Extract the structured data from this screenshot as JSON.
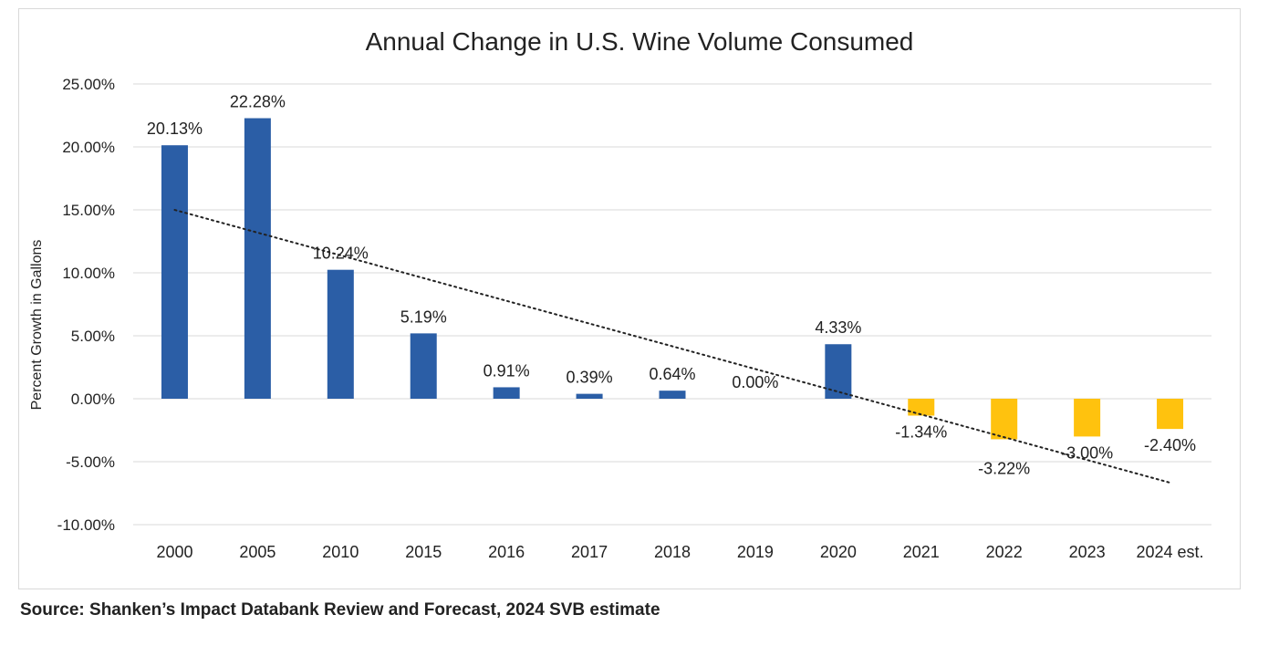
{
  "chart_data": {
    "type": "bar",
    "title": "Annual Change in U.S. Wine Volume Consumed",
    "ylabel": "Percent Growth in Gallons",
    "xlabel": "",
    "categories": [
      "2000",
      "2005",
      "2010",
      "2015",
      "2016",
      "2017",
      "2018",
      "2019",
      "2020",
      "2021",
      "2022",
      "2023",
      "2024 est."
    ],
    "values": [
      20.13,
      22.28,
      10.24,
      5.19,
      0.91,
      0.39,
      0.64,
      0.0,
      4.33,
      -1.34,
      -3.22,
      -3.0,
      -2.4
    ],
    "data_labels": [
      "20.13%",
      "22.28%",
      "10.24%",
      "5.19%",
      "0.91%",
      "0.39%",
      "0.64%",
      "0.00%",
      "4.33%",
      "-1.34%",
      "-3.22%",
      "-3.00%",
      "-2.40%"
    ],
    "ylim": [
      -10,
      25
    ],
    "yticks": [
      25,
      20,
      15,
      10,
      5,
      0,
      -5,
      -10
    ],
    "ytick_labels": [
      "25.00%",
      "20.00%",
      "15.00%",
      "10.00%",
      "5.00%",
      "0.00%",
      "-5.00%",
      "-10.00%"
    ],
    "grid": true,
    "trendline": {
      "type": "linear",
      "style": "dotted",
      "color": "#222222"
    },
    "colors": {
      "positive": "#2b5ea6",
      "negative": "#ffc20e"
    }
  },
  "source": "Source: Shanken’s Impact Databank Review and Forecast, 2024 SVB estimate"
}
